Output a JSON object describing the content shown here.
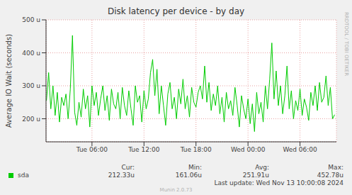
{
  "chart_data": {
    "type": "line",
    "title": "Disk latency per device - by day",
    "y_label": "Average IO Wait (seconds)",
    "side_text": "RRDTOOL / TOBI OETIKER",
    "stats_headers": [
      "Cur:",
      "Min:",
      "Avg:",
      "Max:"
    ],
    "stats_values": [
      "212.33u",
      "161.06u",
      "251.91u",
      "452.78u"
    ],
    "footer": "Last update: Wed Nov 13 10:00:08 2024",
    "credit": "Munin 2.0.73",
    "grid": true,
    "xlim": [
      0.7,
      34.2
    ],
    "xticks": [
      {
        "value": 6,
        "label": "Tue 06:00"
      },
      {
        "value": 12,
        "label": "Tue 12:00"
      },
      {
        "value": 18,
        "label": "Tue 18:00"
      },
      {
        "value": 24,
        "label": "Wed 00:00"
      },
      {
        "value": 30,
        "label": "Wed 06:00"
      }
    ],
    "ylim": [
      130,
      500
    ],
    "yticks": [
      {
        "value": 200,
        "label": "200 u"
      },
      {
        "value": 300,
        "label": "300 u"
      },
      {
        "value": 400,
        "label": "400 u"
      },
      {
        "value": 500,
        "label": "500 u"
      }
    ],
    "x": [
      0.75,
      1,
      1.25,
      1.5,
      1.75,
      2,
      2.25,
      2.5,
      2.75,
      3,
      3.25,
      3.5,
      3.75,
      4,
      4.25,
      4.5,
      4.75,
      5,
      5.25,
      5.5,
      5.75,
      6,
      6.25,
      6.5,
      6.75,
      7,
      7.25,
      7.5,
      7.75,
      8,
      8.25,
      8.5,
      8.75,
      9,
      9.25,
      9.5,
      9.75,
      10,
      10.25,
      10.5,
      10.75,
      11,
      11.25,
      11.5,
      11.75,
      12,
      12.25,
      12.5,
      12.75,
      13,
      13.25,
      13.5,
      13.75,
      14,
      14.25,
      14.5,
      14.75,
      15,
      15.25,
      15.5,
      15.75,
      16,
      16.25,
      16.5,
      16.75,
      17,
      17.25,
      17.5,
      17.75,
      18,
      18.25,
      18.5,
      18.75,
      19,
      19.25,
      19.5,
      19.75,
      20,
      20.25,
      20.5,
      20.75,
      21,
      21.25,
      21.5,
      21.75,
      22,
      22.25,
      22.5,
      22.75,
      23,
      23.25,
      23.5,
      23.75,
      24,
      24.25,
      24.5,
      24.75,
      25,
      25.25,
      25.5,
      25.75,
      26,
      26.25,
      26.5,
      26.75,
      27,
      27.25,
      27.5,
      27.75,
      28,
      28.25,
      28.5,
      28.75,
      29,
      29.25,
      29.5,
      29.75,
      30,
      30.25,
      30.5,
      30.75,
      31,
      31.25,
      31.5,
      31.75,
      32,
      32.25,
      32.5,
      32.75,
      33,
      33.25,
      33.5,
      33.75,
      34
    ],
    "series": [
      {
        "name": "sda",
        "color": "#00cc00",
        "values": [
          255,
          340,
          230,
          300,
          210,
          280,
          190,
          265,
          240,
          275,
          200,
          290,
          452.78,
          220,
          180,
          250,
          205,
          290,
          230,
          270,
          175,
          300,
          240,
          280,
          210,
          260,
          300,
          225,
          270,
          195,
          290,
          245,
          230,
          280,
          200,
          295,
          240,
          210,
          285,
          230,
          180,
          300,
          250,
          270,
          190,
          285,
          230,
          260,
          340,
          380,
          270,
          350,
          215,
          300,
          240,
          180,
          275,
          310,
          230,
          265,
          200,
          290,
          245,
          320,
          230,
          270,
          205,
          295,
          250,
          235,
          280,
          300,
          260,
          360,
          250,
          310,
          225,
          275,
          240,
          300,
          215,
          265,
          190,
          280,
          230,
          255,
          210,
          295,
          240,
          175,
          270,
          230,
          200,
          260,
          185,
          245,
          161.06,
          280,
          215,
          250,
          190,
          300,
          230,
          320,
          430,
          260,
          345,
          240,
          300,
          215,
          270,
          360,
          230,
          285,
          200,
          255,
          225,
          290,
          210,
          260,
          235,
          195,
          280,
          240,
          300,
          225,
          310,
          250,
          265,
          330,
          240,
          295,
          200,
          212.33
        ]
      }
    ]
  }
}
